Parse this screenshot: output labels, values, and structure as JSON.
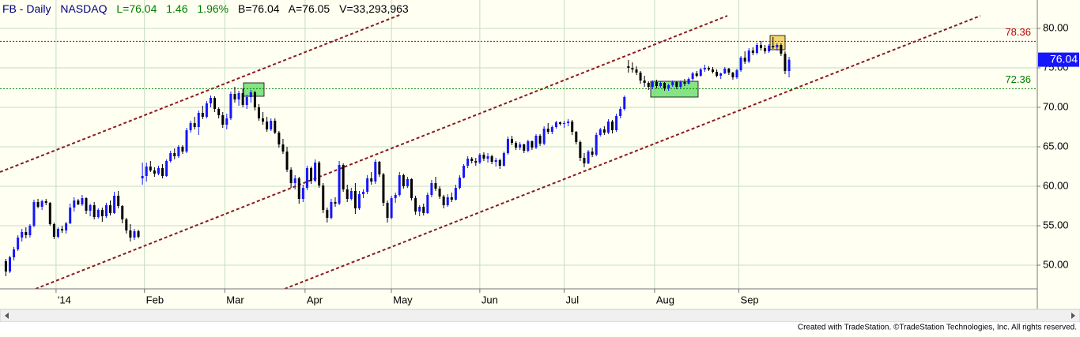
{
  "header": {
    "symbol": "FB - Daily",
    "exchange": "NASDAQ",
    "last": "L=76.04",
    "change": "1.46",
    "change_pct": "1.96%",
    "bid": "B=76.04",
    "ask": "A=76.05",
    "volume": "V=33,293,963"
  },
  "footer": "Created with TradeStation. ©TradeStation Technologies, Inc. All rights reserved.",
  "chart_data": {
    "type": "candlestick",
    "up_color": "#1515ff",
    "down_color": "#000000",
    "ylim": [
      47,
      83.6
    ],
    "yticks": [
      {
        "value": 50,
        "label": "50.00"
      },
      {
        "value": 55,
        "label": "55.00"
      },
      {
        "value": 60,
        "label": "60.00"
      },
      {
        "value": 65,
        "label": "65.00"
      },
      {
        "value": 70,
        "label": "70.00"
      },
      {
        "value": 75,
        "label": "75.00"
      },
      {
        "value": 80,
        "label": "80.00"
      }
    ],
    "xlim": [
      -1.46,
      256.8
    ],
    "xticks": [
      {
        "value": 12.5,
        "label": "'14"
      },
      {
        "value": 34.5,
        "label": "Feb"
      },
      {
        "value": 54.5,
        "label": "Mar"
      },
      {
        "value": 74.5,
        "label": "Apr"
      },
      {
        "value": 96,
        "label": "May"
      },
      {
        "value": 118,
        "label": "Jun"
      },
      {
        "value": 139,
        "label": "Jul"
      },
      {
        "value": 161.5,
        "label": "Aug"
      },
      {
        "value": 182.5,
        "label": "Sep"
      }
    ],
    "grid": true,
    "levels": [
      {
        "value": 78.36,
        "color": "#c00000"
      },
      {
        "value": 72.36,
        "color": "#008000"
      }
    ],
    "ohlc": [
      [
        50.5,
        50.8,
        48.6,
        49.2
      ],
      [
        49.2,
        51.2,
        49,
        51
      ],
      [
        51,
        52.3,
        50.6,
        52
      ],
      [
        52,
        53.8,
        51.8,
        53.5
      ],
      [
        53.5,
        54.6,
        53,
        54.2
      ],
      [
        54.2,
        54.8,
        53.4,
        53.8
      ],
      [
        53.8,
        55.2,
        53.5,
        55
      ],
      [
        55,
        58.3,
        54.8,
        58
      ],
      [
        58,
        58.4,
        57.2,
        57.4
      ],
      [
        57.4,
        58.3,
        57,
        58.1
      ],
      [
        58.1,
        58.4,
        57.6,
        57.9
      ],
      [
        57.9,
        58,
        55,
        55.2
      ],
      [
        55.2,
        55.4,
        53.3,
        53.6
      ],
      [
        53.6,
        54.8,
        53.4,
        54.6
      ],
      [
        54.6,
        55,
        54.1,
        54.4
      ],
      [
        54.4,
        55.5,
        54,
        55.3
      ],
      [
        55.3,
        57.8,
        55.2,
        57.3
      ],
      [
        57.3,
        58.6,
        56.8,
        58.2
      ],
      [
        58.2,
        58.4,
        57.6,
        57.7
      ],
      [
        57.7,
        58.9,
        57.5,
        58.5
      ],
      [
        58.5,
        58.6,
        56.5,
        56.9
      ],
      [
        56.9,
        57.8,
        56.2,
        57.6
      ],
      [
        57.6,
        58,
        55.8,
        56.1
      ],
      [
        56.1,
        57.2,
        55.9,
        57
      ],
      [
        57,
        57.3,
        55.5,
        56.2
      ],
      [
        56.2,
        57.9,
        56,
        57.6
      ],
      [
        57.6,
        58.2,
        56.3,
        56.6
      ],
      [
        56.6,
        59.3,
        56.5,
        58.8
      ],
      [
        58.8,
        59.4,
        57.2,
        57.5
      ],
      [
        57.5,
        57.6,
        55.3,
        55.8
      ],
      [
        55.8,
        56,
        54,
        54.4
      ],
      [
        54.4,
        55.2,
        53,
        53.5
      ],
      [
        53.5,
        54.6,
        53.2,
        54.3
      ],
      [
        54.3,
        54.5,
        53.4,
        53.6
      ],
      [
        61,
        63,
        60.2,
        61.3
      ],
      [
        61.3,
        63,
        60.6,
        62.5
      ],
      [
        62.5,
        63.2,
        61.8,
        62
      ],
      [
        62,
        62.4,
        61.2,
        61.6
      ],
      [
        61.6,
        62.6,
        61.4,
        62.3
      ],
      [
        62.3,
        62.8,
        61,
        61.3
      ],
      [
        61.3,
        63.4,
        61.2,
        63.2
      ],
      [
        63.2,
        64.5,
        63,
        64.2
      ],
      [
        64.2,
        64.8,
        63.4,
        63.8
      ],
      [
        63.8,
        65.2,
        63.6,
        65
      ],
      [
        65,
        65.2,
        64.1,
        64.4
      ],
      [
        64.4,
        67.4,
        64.2,
        67.1
      ],
      [
        67.1,
        68.3,
        66.8,
        68
      ],
      [
        68,
        68.8,
        67.2,
        67.5
      ],
      [
        67.5,
        69.6,
        66.5,
        69.3
      ],
      [
        69.3,
        70.2,
        68.5,
        68.8
      ],
      [
        68.8,
        70.8,
        68.6,
        70.5
      ],
      [
        70.5,
        71.5,
        70,
        71.2
      ],
      [
        71.2,
        71.4,
        69.4,
        69.8
      ],
      [
        69.8,
        70,
        68.6,
        69
      ],
      [
        69,
        69.4,
        67.4,
        67.8
      ],
      [
        67.8,
        69.2,
        67.2,
        68.6
      ],
      [
        68.6,
        72,
        68.4,
        71.7
      ],
      [
        71.7,
        72.6,
        70.6,
        71
      ],
      [
        71,
        72.1,
        70.2,
        71.8
      ],
      [
        71.8,
        72.4,
        70,
        70.3
      ],
      [
        70.3,
        71.6,
        69.8,
        71.3
      ],
      [
        71.3,
        72.2,
        70.6,
        71.9
      ],
      [
        71.9,
        72.1,
        69.6,
        70
      ],
      [
        70,
        70.4,
        68.3,
        68.6
      ],
      [
        68.6,
        69.4,
        67.8,
        68.2
      ],
      [
        68.2,
        68.8,
        66.9,
        67.2
      ],
      [
        67.2,
        68.6,
        67,
        68.3
      ],
      [
        68.3,
        68.6,
        66.6,
        66.8
      ],
      [
        66.8,
        67,
        64.9,
        65.3
      ],
      [
        65.3,
        66,
        64.1,
        64.4
      ],
      [
        64.4,
        65,
        61.8,
        62.1
      ],
      [
        62.1,
        62.4,
        59.8,
        60.4
      ],
      [
        60.4,
        61.4,
        59.6,
        61
      ],
      [
        61,
        61.2,
        57.8,
        58.4
      ],
      [
        58.4,
        60.2,
        58,
        59.8
      ],
      [
        59.8,
        62.6,
        59.5,
        62.3
      ],
      [
        62.3,
        62.5,
        60.3,
        60.7
      ],
      [
        60.7,
        63.4,
        60.5,
        63
      ],
      [
        63,
        63.2,
        59.8,
        60.1
      ],
      [
        60.1,
        60.4,
        56.6,
        57
      ],
      [
        57,
        57.3,
        55.4,
        56
      ],
      [
        56,
        58.4,
        55.8,
        58
      ],
      [
        58,
        58.6,
        57.4,
        57.8
      ],
      [
        57.8,
        63.2,
        57.6,
        62.7
      ],
      [
        62.7,
        62.9,
        59.3,
        59.6
      ],
      [
        59.6,
        60.2,
        58,
        58.4
      ],
      [
        58.4,
        59.8,
        58.2,
        59.4
      ],
      [
        59.4,
        60.4,
        56.5,
        57.2
      ],
      [
        57.2,
        59.4,
        57,
        59
      ],
      [
        59,
        59.6,
        58.5,
        59.3
      ],
      [
        59.3,
        61.4,
        59,
        61
      ],
      [
        61,
        61.8,
        60.2,
        60.6
      ],
      [
        60.6,
        63.4,
        60.3,
        63.1
      ],
      [
        63.1,
        63.2,
        61.2,
        61.5
      ],
      [
        61.5,
        61.7,
        57.5,
        57.9
      ],
      [
        57.9,
        58.2,
        55.4,
        56
      ],
      [
        56,
        58.8,
        55.8,
        58.5
      ],
      [
        58.5,
        59.2,
        57.9,
        58.9
      ],
      [
        58.9,
        61.8,
        58.7,
        61.4
      ],
      [
        61.4,
        61.6,
        59.7,
        60
      ],
      [
        60,
        61.2,
        59.8,
        60.9
      ],
      [
        60.9,
        61,
        58.2,
        58.5
      ],
      [
        58.5,
        58.8,
        56.4,
        56.8
      ],
      [
        56.8,
        57.6,
        56.2,
        57.4
      ],
      [
        57.4,
        57.8,
        56.3,
        56.6
      ],
      [
        56.6,
        59.2,
        56.5,
        58.9
      ],
      [
        58.9,
        60.8,
        58.6,
        60.4
      ],
      [
        60.4,
        61.2,
        59.4,
        59.7
      ],
      [
        59.7,
        60,
        58.4,
        58.7
      ],
      [
        58.7,
        58.9,
        57.2,
        57.6
      ],
      [
        57.6,
        59,
        57.4,
        58.6
      ],
      [
        58.6,
        59.2,
        58,
        58.3
      ],
      [
        58.3,
        60.2,
        58.2,
        59.8
      ],
      [
        59.8,
        61.4,
        59.6,
        61.1
      ],
      [
        61.1,
        62.8,
        61,
        62.6
      ],
      [
        62.6,
        63.8,
        62.3,
        63.5
      ],
      [
        63.5,
        63.7,
        62.9,
        63.2
      ],
      [
        63.2,
        63.6,
        62.6,
        63
      ],
      [
        63,
        64.2,
        62.8,
        64
      ],
      [
        64,
        64.3,
        63.2,
        63.5
      ],
      [
        63.5,
        64.2,
        63,
        63.8
      ],
      [
        63.8,
        64,
        62.8,
        63.1
      ],
      [
        63.1,
        63.6,
        62.5,
        63.3
      ],
      [
        63.3,
        63.5,
        62.2,
        62.6
      ],
      [
        62.6,
        64.4,
        62.5,
        64.2
      ],
      [
        64.2,
        66.3,
        64,
        66
      ],
      [
        66,
        66.4,
        65.2,
        65.5
      ],
      [
        65.5,
        65.7,
        64.6,
        64.9
      ],
      [
        64.9,
        65.6,
        64.6,
        65.3
      ],
      [
        65.3,
        65.4,
        64.2,
        64.5
      ],
      [
        64.5,
        65.9,
        64.3,
        65.7
      ],
      [
        65.7,
        65.8,
        64.6,
        64.9
      ],
      [
        64.9,
        66.6,
        64.7,
        66.4
      ],
      [
        66.4,
        66.6,
        65.1,
        65.4
      ],
      [
        65.4,
        67.6,
        65.2,
        67.3
      ],
      [
        67.3,
        68,
        66.6,
        66.9
      ],
      [
        66.9,
        67.7,
        66.6,
        67.5
      ],
      [
        67.5,
        68.3,
        67.3,
        68.1
      ],
      [
        68.1,
        68.2,
        67.7,
        67.9
      ],
      [
        67.9,
        68.3,
        67.4,
        68
      ],
      [
        68,
        68.5,
        67.6,
        68.2
      ],
      [
        68.2,
        68.4,
        66.5,
        66.9
      ],
      [
        66.9,
        67,
        65.3,
        65.6
      ],
      [
        65.6,
        65.8,
        63.2,
        63.6
      ],
      [
        63.6,
        64.2,
        62.4,
        62.9
      ],
      [
        62.9,
        64.6,
        62.8,
        64.4
      ],
      [
        64.4,
        64.9,
        63.7,
        64
      ],
      [
        64,
        66.8,
        63.8,
        66.5
      ],
      [
        66.5,
        67.4,
        66.3,
        67.2
      ],
      [
        67.2,
        67.6,
        66.5,
        66.8
      ],
      [
        66.8,
        68.5,
        66.6,
        68.2
      ],
      [
        68.2,
        68.4,
        66.7,
        67.1
      ],
      [
        67.1,
        69.2,
        66.9,
        68.9
      ],
      [
        68.9,
        70.1,
        68.6,
        69.8
      ],
      [
        69.8,
        71.5,
        69.6,
        71.3
      ],
      [
        75.2,
        76,
        74.4,
        75
      ],
      [
        75,
        75.7,
        74.4,
        74.8
      ],
      [
        74.8,
        75.2,
        74.1,
        74.4
      ],
      [
        74.4,
        74.6,
        73,
        73.4
      ],
      [
        73.4,
        74,
        72.6,
        73.1
      ],
      [
        73.1,
        73.3,
        72.2,
        72.6
      ],
      [
        72.6,
        73.4,
        72.3,
        73.2
      ],
      [
        73.2,
        73.5,
        72.4,
        72.7
      ],
      [
        72.7,
        73.3,
        72.5,
        73.1
      ],
      [
        73.1,
        73.2,
        72.1,
        72.4
      ],
      [
        72.4,
        73,
        72.1,
        72.8
      ],
      [
        72.8,
        73.4,
        72.6,
        73.2
      ],
      [
        73.2,
        73.3,
        72.3,
        72.6
      ],
      [
        72.6,
        73.4,
        72.4,
        73.2
      ],
      [
        73.2,
        73.6,
        72.7,
        73
      ],
      [
        73,
        73.8,
        72.9,
        73.6
      ],
      [
        73.6,
        74.5,
        73.4,
        74.3
      ],
      [
        74.3,
        74.6,
        73.8,
        74
      ],
      [
        74,
        75,
        73.9,
        74.8
      ],
      [
        74.8,
        75.4,
        74.5,
        75
      ],
      [
        75,
        75.2,
        74.6,
        74.8
      ],
      [
        74.8,
        75.1,
        74.3,
        74.5
      ],
      [
        74.5,
        74.8,
        73.8,
        74
      ],
      [
        74,
        74.4,
        73.6,
        74.3
      ],
      [
        74.3,
        75.1,
        74.2,
        74.9
      ],
      [
        74.9,
        75,
        74.1,
        74.4
      ],
      [
        74.4,
        74.5,
        73.5,
        73.8
      ],
      [
        73.8,
        74.9,
        73.6,
        74.7
      ],
      [
        74.7,
        76.5,
        74.5,
        76.3
      ],
      [
        76.3,
        77.1,
        75.5,
        75.8
      ],
      [
        75.8,
        77.5,
        75.6,
        77.2
      ],
      [
        77.2,
        77.6,
        76.6,
        76.9
      ],
      [
        76.9,
        78.2,
        76.7,
        77.9
      ],
      [
        77.9,
        78.4,
        77.2,
        77.5
      ],
      [
        77.5,
        77.9,
        76.8,
        77.1
      ],
      [
        77.1,
        78,
        76.9,
        77.8
      ],
      [
        77.8,
        78.9,
        77.4,
        77.6
      ],
      [
        77.6,
        78.1,
        77.2,
        77.9
      ],
      [
        77.9,
        78.1,
        76.5,
        76.8
      ],
      [
        76.8,
        77.1,
        74.2,
        74.6
      ],
      [
        74.6,
        76.4,
        73.8,
        76.04
      ]
    ]
  }
}
